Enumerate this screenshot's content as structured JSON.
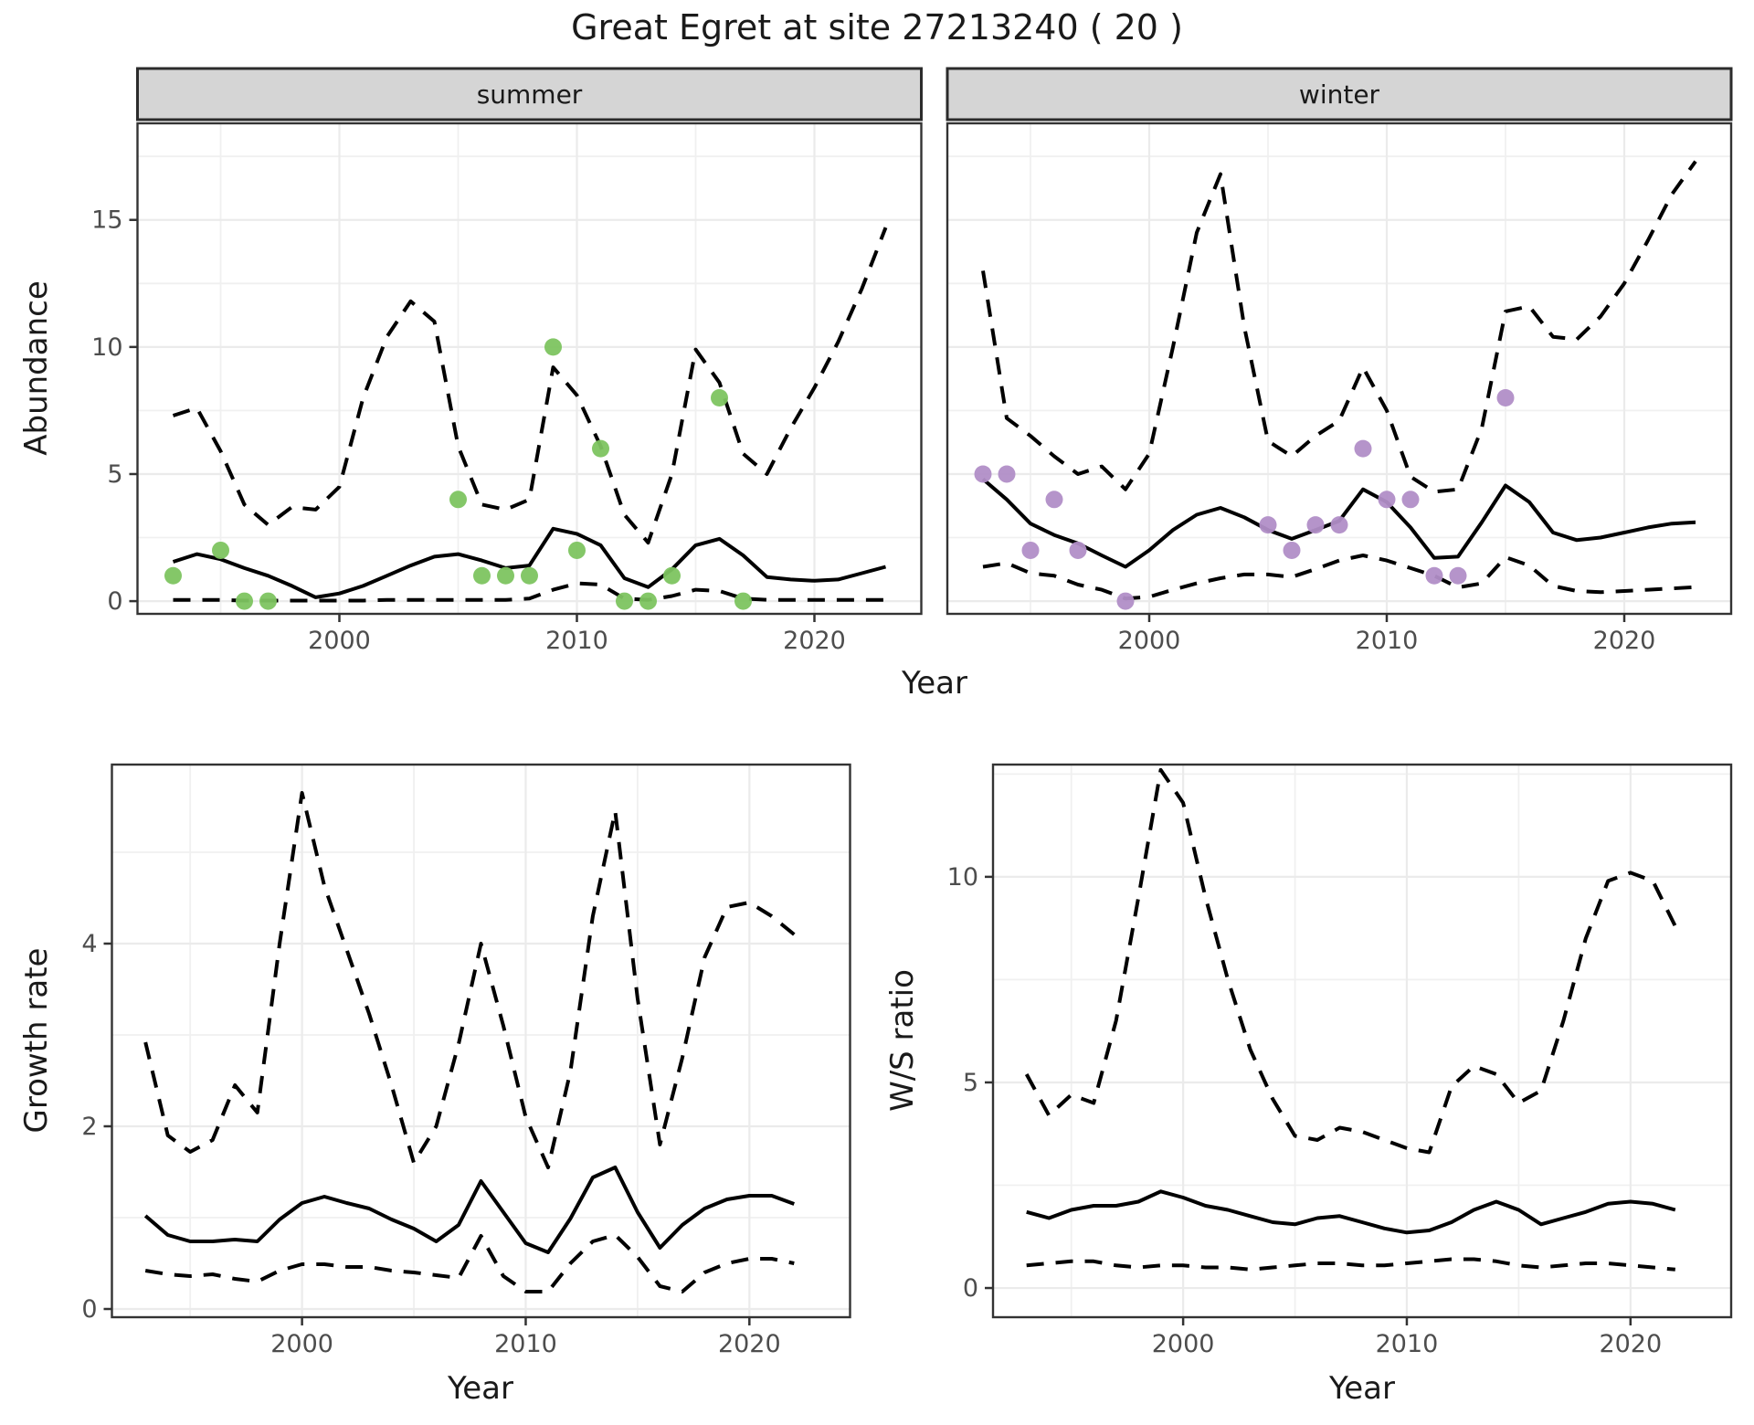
{
  "meta": {
    "title": "Great Egret at site 27213240 ( 20 )",
    "axes": {
      "x_top": "Year",
      "y_top": "Abundance",
      "x_growth": "Year",
      "y_growth": "Growth rate",
      "x_ws": "Year",
      "y_ws": "W/S ratio"
    },
    "line_styles": {
      "median": "solid",
      "credible_interval": "dashed"
    },
    "colors": {
      "summer_points": "#7DC460",
      "winter_points": "#B18EC7",
      "line": "#000000",
      "strip_fill": "#D5D5D5",
      "panel_border": "#333333",
      "grid_major": "#EBEBEB",
      "grid_minor": "#F0F0F0",
      "tick_text": "#4D4D4D"
    }
  },
  "chart_data": [
    {
      "id": "abundance",
      "type": "line",
      "ylabel": "Abundance",
      "xlabel": "Year",
      "facets": [
        "summer",
        "winter"
      ],
      "x": [
        1993,
        1994,
        1995,
        1996,
        1997,
        1998,
        1999,
        2000,
        2001,
        2002,
        2003,
        2004,
        2005,
        2006,
        2007,
        2008,
        2009,
        2010,
        2011,
        2012,
        2013,
        2014,
        2015,
        2016,
        2017,
        2018,
        2019,
        2020,
        2021,
        2022,
        2023
      ],
      "xlim": [
        1991.5,
        2024.5
      ],
      "ylim": [
        -0.5,
        18.8
      ],
      "xbreaks": [
        2000,
        2010,
        2020
      ],
      "xminor": [
        1995,
        2005,
        2015
      ],
      "ybreaks": [
        0,
        5,
        10,
        15
      ],
      "yminor": [
        2.5,
        7.5,
        12.5,
        17.5
      ],
      "series": {
        "summer": {
          "median": [
            1.55,
            1.85,
            1.65,
            1.3,
            1.0,
            0.6,
            0.15,
            0.3,
            0.6,
            1.0,
            1.4,
            1.75,
            1.85,
            1.6,
            1.3,
            1.4,
            2.85,
            2.65,
            2.2,
            0.9,
            0.55,
            1.25,
            2.2,
            2.45,
            1.8,
            0.95,
            0.85,
            0.8,
            0.85,
            1.1,
            1.35
          ],
          "upper": [
            7.3,
            7.6,
            5.9,
            3.8,
            3.0,
            3.7,
            3.6,
            4.5,
            8.0,
            10.4,
            11.8,
            11.0,
            6.1,
            3.8,
            3.6,
            4.0,
            9.2,
            8.1,
            6.1,
            3.4,
            2.3,
            5.0,
            9.9,
            8.6,
            5.8,
            5.0,
            6.8,
            8.4,
            10.2,
            12.3,
            14.7
          ],
          "lower": [
            0.05,
            0.05,
            0.05,
            0.02,
            0.02,
            0.02,
            0.02,
            0.02,
            0.02,
            0.05,
            0.05,
            0.05,
            0.05,
            0.05,
            0.05,
            0.1,
            0.45,
            0.7,
            0.65,
            0.1,
            0.05,
            0.2,
            0.45,
            0.4,
            0.1,
            0.05,
            0.05,
            0.05,
            0.05,
            0.05,
            0.05
          ],
          "points_x": [
            1993,
            1995,
            1996,
            1997,
            2005,
            2006,
            2007,
            2008,
            2009,
            2010,
            2011,
            2012,
            2013,
            2014,
            2016,
            2017
          ],
          "points_y": [
            1,
            2,
            0,
            0,
            4,
            1,
            1,
            1,
            10,
            2,
            6,
            0,
            0,
            1,
            8,
            0
          ],
          "point_color": "#7DC460"
        },
        "winter": {
          "median": [
            4.8,
            4.0,
            3.05,
            2.6,
            2.27,
            1.8,
            1.35,
            2.0,
            2.8,
            3.4,
            3.67,
            3.3,
            2.8,
            2.45,
            2.8,
            3.16,
            4.4,
            3.9,
            2.9,
            1.7,
            1.75,
            3.1,
            4.55,
            3.9,
            2.7,
            2.4,
            2.5,
            2.7,
            2.9,
            3.05,
            3.1
          ],
          "upper": [
            13.0,
            7.2,
            6.5,
            5.7,
            5.0,
            5.3,
            4.4,
            5.8,
            10.0,
            14.5,
            16.8,
            10.8,
            6.3,
            5.7,
            6.5,
            7.1,
            9.2,
            7.5,
            4.9,
            4.3,
            4.4,
            6.8,
            11.4,
            11.6,
            10.4,
            10.3,
            11.2,
            12.5,
            14.2,
            16.0,
            17.3
          ],
          "lower": [
            1.35,
            1.5,
            1.1,
            1.0,
            0.65,
            0.45,
            0.1,
            0.17,
            0.45,
            0.7,
            0.9,
            1.05,
            1.05,
            0.95,
            1.26,
            1.6,
            1.8,
            1.6,
            1.3,
            1.0,
            0.54,
            0.7,
            1.73,
            1.4,
            0.6,
            0.4,
            0.35,
            0.4,
            0.45,
            0.5,
            0.55
          ],
          "points_x": [
            1993,
            1994,
            1995,
            1996,
            1997,
            1999,
            2005,
            2006,
            2007,
            2008,
            2009,
            2010,
            2011,
            2012,
            2013,
            2015
          ],
          "points_y": [
            5,
            5,
            2,
            4,
            2,
            0,
            3,
            2,
            3,
            3,
            6,
            4,
            4,
            1,
            1,
            8
          ],
          "point_color": "#B18EC7"
        }
      }
    },
    {
      "id": "growth_rate",
      "type": "line",
      "ylabel": "Growth rate",
      "xlabel": "Year",
      "x": [
        1993,
        1994,
        1995,
        1996,
        1997,
        1998,
        1999,
        2000,
        2001,
        2002,
        2003,
        2004,
        2005,
        2006,
        2007,
        2008,
        2009,
        2010,
        2011,
        2012,
        2013,
        2014,
        2015,
        2016,
        2017,
        2018,
        2019,
        2020,
        2021,
        2022
      ],
      "xlim": [
        1991.5,
        2024.5
      ],
      "ylim": [
        -0.09,
        5.96
      ],
      "xbreaks": [
        2000,
        2010,
        2020
      ],
      "xminor": [
        1995,
        2005,
        2015
      ],
      "ybreaks": [
        0,
        2,
        4
      ],
      "yminor": [
        1,
        3,
        5
      ],
      "median": [
        1.02,
        0.81,
        0.74,
        0.74,
        0.76,
        0.74,
        0.98,
        1.16,
        1.23,
        1.16,
        1.1,
        0.98,
        0.88,
        0.74,
        0.92,
        1.4,
        1.06,
        0.72,
        0.62,
        0.99,
        1.44,
        1.55,
        1.06,
        0.67,
        0.92,
        1.1,
        1.2,
        1.24,
        1.24,
        1.15
      ],
      "upper": [
        2.92,
        1.9,
        1.72,
        1.85,
        2.45,
        2.15,
        4.0,
        5.65,
        4.63,
        3.93,
        3.23,
        2.45,
        1.6,
        2.0,
        2.9,
        4.0,
        3.1,
        2.1,
        1.55,
        2.6,
        4.3,
        5.45,
        3.4,
        1.8,
        2.75,
        3.85,
        4.4,
        4.45,
        4.3,
        4.1
      ],
      "lower": [
        0.42,
        0.38,
        0.36,
        0.38,
        0.33,
        0.3,
        0.42,
        0.49,
        0.49,
        0.46,
        0.46,
        0.42,
        0.4,
        0.37,
        0.34,
        0.8,
        0.36,
        0.19,
        0.19,
        0.5,
        0.74,
        0.81,
        0.57,
        0.25,
        0.19,
        0.4,
        0.5,
        0.55,
        0.55,
        0.5
      ]
    },
    {
      "id": "ws_ratio",
      "type": "line",
      "ylabel": "W/S ratio",
      "xlabel": "Year",
      "x": [
        1993,
        1994,
        1995,
        1996,
        1997,
        1998,
        1999,
        2000,
        2001,
        2002,
        2003,
        2004,
        2005,
        2006,
        2007,
        2008,
        2009,
        2010,
        2011,
        2012,
        2013,
        2014,
        2015,
        2016,
        2017,
        2018,
        2019,
        2020,
        2021,
        2022
      ],
      "xlim": [
        1991.5,
        2024.5
      ],
      "ylim": [
        -0.71,
        12.73
      ],
      "xbreaks": [
        2000,
        2010,
        2020
      ],
      "xminor": [
        1995,
        2005,
        2015
      ],
      "ybreaks": [
        0,
        5,
        10
      ],
      "yminor": [
        2.5,
        7.5,
        12.5
      ],
      "median": [
        1.85,
        1.7,
        1.9,
        2.0,
        2.0,
        2.1,
        2.35,
        2.2,
        2.0,
        1.9,
        1.75,
        1.6,
        1.55,
        1.7,
        1.75,
        1.6,
        1.45,
        1.35,
        1.4,
        1.6,
        1.9,
        2.1,
        1.9,
        1.55,
        1.7,
        1.85,
        2.05,
        2.1,
        2.05,
        1.9
      ],
      "upper": [
        5.2,
        4.2,
        4.7,
        4.5,
        6.5,
        9.5,
        12.6,
        11.8,
        9.5,
        7.5,
        5.8,
        4.6,
        3.7,
        3.6,
        3.9,
        3.8,
        3.6,
        3.4,
        3.3,
        4.9,
        5.4,
        5.2,
        4.5,
        4.8,
        6.5,
        8.5,
        9.9,
        10.1,
        9.9,
        8.8
      ],
      "lower": [
        0.55,
        0.6,
        0.65,
        0.65,
        0.55,
        0.5,
        0.55,
        0.55,
        0.5,
        0.5,
        0.45,
        0.5,
        0.55,
        0.6,
        0.6,
        0.55,
        0.55,
        0.6,
        0.65,
        0.7,
        0.7,
        0.65,
        0.55,
        0.5,
        0.55,
        0.6,
        0.6,
        0.55,
        0.5,
        0.45
      ]
    }
  ]
}
